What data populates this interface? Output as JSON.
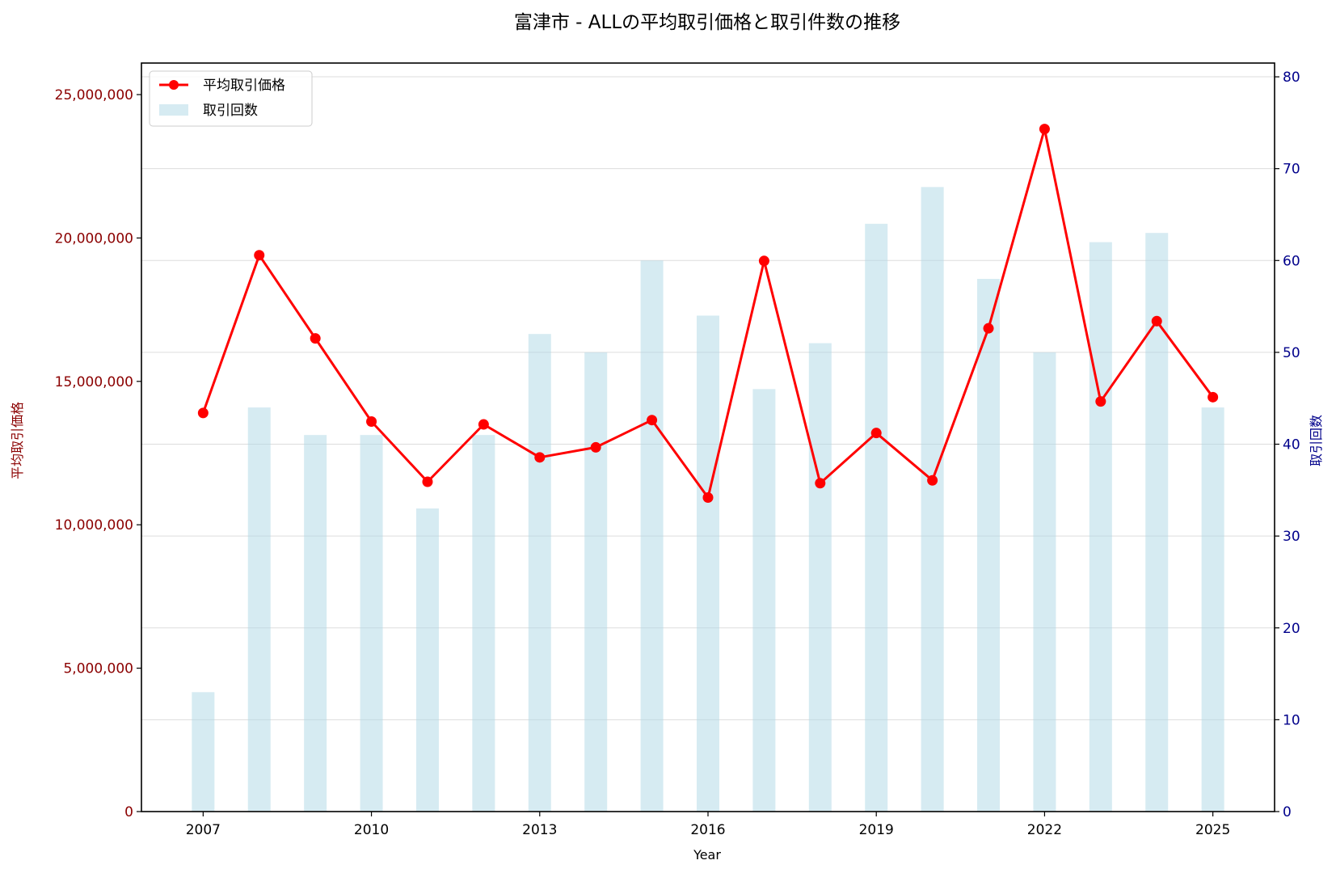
{
  "chart_data": {
    "type": "bar+line",
    "title": "富津市 - ALLの平均取引価格と取引件数の推移",
    "xlabel": "Year",
    "ylabel_left": "平均取引価格",
    "ylabel_right": "取引回数",
    "x": [
      2007,
      2008,
      2009,
      2010,
      2011,
      2012,
      2013,
      2014,
      2015,
      2016,
      2017,
      2018,
      2019,
      2020,
      2021,
      2022,
      2023,
      2024,
      2025
    ],
    "x_ticks": [
      "2007",
      "2010",
      "2013",
      "2016",
      "2019",
      "2022",
      "2025"
    ],
    "left_ticks": [
      "0",
      "5,000,000",
      "10,000,000",
      "15,000,000",
      "20,000,000",
      "25,000,000"
    ],
    "right_ticks": [
      "0",
      "10",
      "20",
      "30",
      "40",
      "50",
      "60",
      "70",
      "80"
    ],
    "ylim_left": [
      0,
      26100000
    ],
    "ylim_right": [
      0,
      81.5
    ],
    "grid": true,
    "legend_position": "top-left",
    "series": [
      {
        "name": "平均取引価格",
        "kind": "line",
        "axis": "left",
        "color": "#ff0000",
        "values": [
          13900000,
          19400000,
          16500000,
          13600000,
          11500000,
          13500000,
          12350000,
          12700000,
          13650000,
          10950000,
          19200000,
          11450000,
          13200000,
          11550000,
          16850000,
          23800000,
          14300000,
          17100000,
          14450000
        ]
      },
      {
        "name": "取引回数",
        "kind": "bar",
        "axis": "right",
        "color": "#add8e6",
        "values": [
          13,
          44,
          41,
          41,
          33,
          41,
          52,
          50,
          60,
          54,
          46,
          51,
          64,
          68,
          58,
          50,
          62,
          63,
          44
        ]
      }
    ],
    "colors": {
      "left_axis": "#8b0000",
      "right_axis": "#00008b"
    }
  }
}
